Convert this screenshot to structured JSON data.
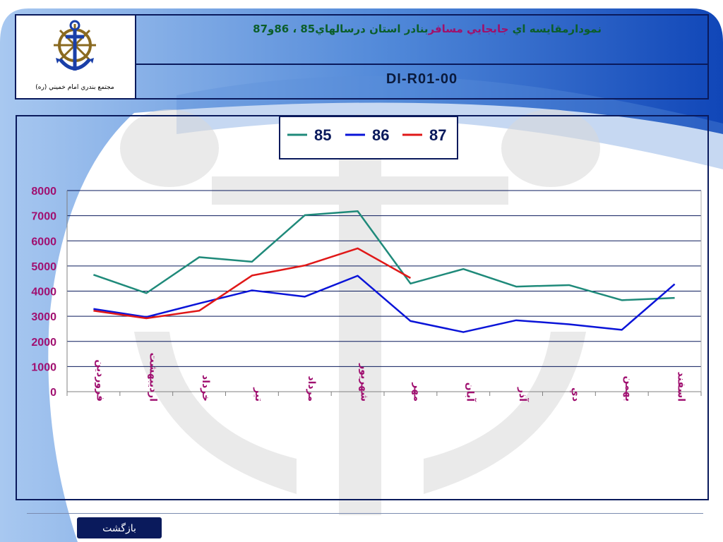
{
  "header": {
    "title_parts": [
      {
        "text": "نمودارمقايسه اي ",
        "color": "#0b5e2a"
      },
      {
        "text": "جابجايي مسافر",
        "color": "#a0106a"
      },
      {
        "text": "بنادر استان درسالهاي85 ، 86و87",
        "color": "#0b5e2a"
      }
    ],
    "code": "DI-R01-00",
    "logo_caption": "مجتمع بندري امام خميني (ره)"
  },
  "footer": {
    "back_label": "بازگشت"
  },
  "chart_data": {
    "type": "line",
    "categories": [
      "فروردين",
      "ارديبهشت",
      "خرداد",
      "تير",
      "مرداد",
      "شهريور",
      "مهر",
      "آبان",
      "آذر",
      "دي",
      "بهمن",
      "اسفند"
    ],
    "ylim": [
      0,
      8000
    ],
    "yticks": [
      "8000",
      "7000",
      "6000",
      "5000",
      "4000",
      "3000",
      "2000",
      "1000",
      "0"
    ],
    "grid": true,
    "legend_position": "top-center",
    "series": [
      {
        "name": "85",
        "color": "#1f8a7a",
        "values": [
          4650,
          3920,
          5350,
          5170,
          7020,
          7180,
          4300,
          4880,
          4180,
          4240,
          3640,
          3730
        ]
      },
      {
        "name": "86",
        "color": "#0a14d8",
        "values": [
          3290,
          2970,
          3510,
          4030,
          3780,
          4610,
          2810,
          2370,
          2840,
          2680,
          2460,
          4280
        ]
      },
      {
        "name": "87",
        "color": "#e01818",
        "values": [
          3220,
          2920,
          3220,
          4620,
          5020,
          5700,
          4520,
          null,
          null,
          null,
          null,
          null
        ]
      }
    ]
  }
}
